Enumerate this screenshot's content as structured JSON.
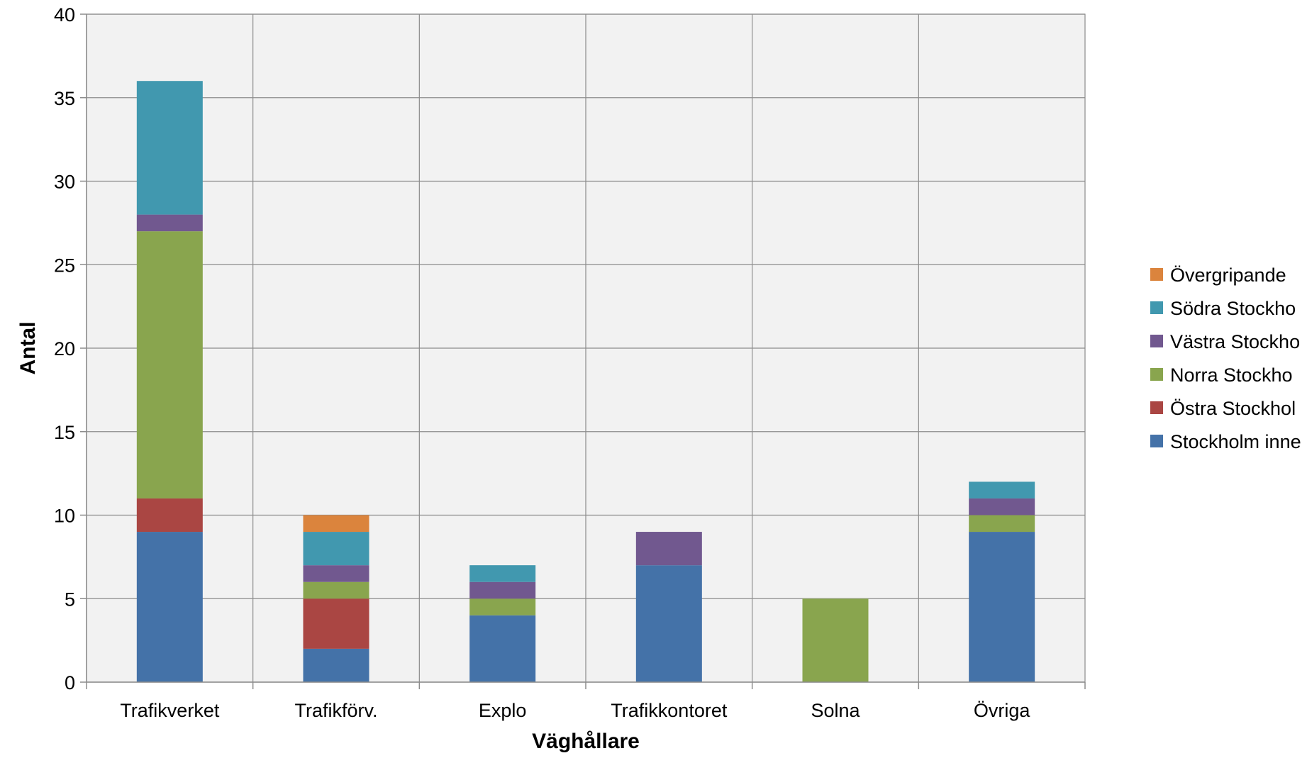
{
  "chart_data": {
    "type": "bar",
    "stacked": true,
    "title": "",
    "xlabel": "Väghållare",
    "ylabel": "Antal",
    "ylim": [
      0,
      40
    ],
    "yticks": [
      0,
      5,
      10,
      15,
      20,
      25,
      30,
      35,
      40
    ],
    "grid": true,
    "legend_position": "right",
    "categories": [
      "Trafikverket",
      "Trafikförv.",
      "Explo",
      "Trafikkontoret",
      "Solna",
      "Övriga"
    ],
    "series": [
      {
        "name": "Stockholm inne",
        "color": "#4472A8",
        "values": [
          9,
          2,
          4,
          7,
          0,
          9
        ]
      },
      {
        "name": "Östra Stockhol",
        "color": "#AA4643",
        "values": [
          2,
          3,
          0,
          0,
          0,
          0
        ]
      },
      {
        "name": "Norra Stockho",
        "color": "#89A54E",
        "values": [
          16,
          1,
          1,
          0,
          5,
          1
        ]
      },
      {
        "name": "Västra Stockho",
        "color": "#71588F",
        "values": [
          1,
          1,
          1,
          2,
          0,
          1
        ]
      },
      {
        "name": "Södra Stockho",
        "color": "#4198AF",
        "values": [
          8,
          2,
          1,
          0,
          0,
          1
        ]
      },
      {
        "name": "Övergripande",
        "color": "#DB843D",
        "values": [
          0,
          1,
          0,
          0,
          0,
          0
        ]
      }
    ]
  }
}
